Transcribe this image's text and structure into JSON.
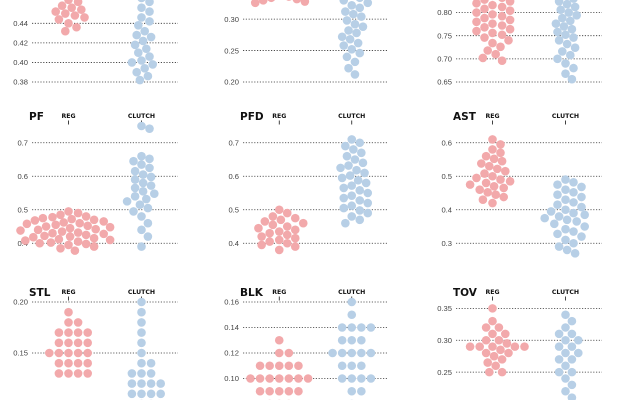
{
  "colors": {
    "reg": "#f2a9ab",
    "clutch": "#b7cfe6"
  },
  "chart_data": [
    {
      "type": "scatter",
      "title": "",
      "categories": [
        "",
        ""
      ],
      "ylim": [
        0.38,
        0.47
      ],
      "yticks": [
        0.38,
        0.4,
        0.42,
        0.44
      ],
      "series": [
        {
          "values": [
            0.464,
            0.462,
            0.458,
            0.456,
            0.454,
            0.452,
            0.45,
            0.448,
            0.446,
            0.444,
            0.44,
            0.436,
            0.432
          ]
        },
        {
          "values": [
            0.466,
            0.462,
            0.456,
            0.452,
            0.446,
            0.442,
            0.438,
            0.432,
            0.428,
            0.426,
            0.422,
            0.418,
            0.414,
            0.41,
            0.406,
            0.402,
            0.4,
            0.398,
            0.394,
            0.39,
            0.386,
            0.382
          ]
        }
      ]
    },
    {
      "type": "scatter",
      "title": "",
      "categories": [
        "",
        ""
      ],
      "ylim": [
        0.2,
        0.34
      ],
      "yticks": [
        0.2,
        0.25,
        0.3
      ],
      "series": [
        {
          "values": [
            0.338,
            0.336,
            0.334,
            0.332,
            0.33,
            0.328,
            0.326
          ]
        },
        {
          "values": [
            0.338,
            0.334,
            0.33,
            0.326,
            0.322,
            0.318,
            0.312,
            0.308,
            0.304,
            0.298,
            0.292,
            0.288,
            0.282,
            0.278,
            0.272,
            0.268,
            0.262,
            0.258,
            0.252,
            0.246,
            0.24,
            0.232,
            0.222,
            0.212
          ]
        }
      ]
    },
    {
      "type": "scatter",
      "title": "",
      "categories": [
        "",
        ""
      ],
      "ylim": [
        0.65,
        0.84
      ],
      "yticks": [
        0.65,
        0.7,
        0.75,
        0.8
      ],
      "series": [
        {
          "values": [
            0.836,
            0.832,
            0.828,
            0.824,
            0.82,
            0.816,
            0.812,
            0.808,
            0.804,
            0.8,
            0.796,
            0.792,
            0.788,
            0.784,
            0.78,
            0.776,
            0.772,
            0.768,
            0.764,
            0.76,
            0.756,
            0.752,
            0.746,
            0.74,
            0.734,
            0.726,
            0.718,
            0.71,
            0.702,
            0.696
          ]
        },
        {
          "values": [
            0.836,
            0.83,
            0.824,
            0.818,
            0.812,
            0.806,
            0.8,
            0.794,
            0.788,
            0.782,
            0.776,
            0.77,
            0.764,
            0.758,
            0.752,
            0.746,
            0.74,
            0.732,
            0.724,
            0.716,
            0.708,
            0.7,
            0.69,
            0.68,
            0.668,
            0.656
          ]
        }
      ]
    },
    {
      "type": "scatter",
      "title": "PF",
      "categories": [
        "REG",
        "CLUTCH"
      ],
      "ylim": [
        0.35,
        0.75
      ],
      "yticks": [
        0.4,
        0.5,
        0.6,
        0.7
      ],
      "series": [
        {
          "values": [
            0.495,
            0.49,
            0.485,
            0.48,
            0.478,
            0.475,
            0.472,
            0.47,
            0.468,
            0.465,
            0.462,
            0.46,
            0.458,
            0.455,
            0.452,
            0.45,
            0.448,
            0.445,
            0.442,
            0.44,
            0.438,
            0.435,
            0.432,
            0.43,
            0.428,
            0.425,
            0.422,
            0.42,
            0.418,
            0.415,
            0.412,
            0.41,
            0.408,
            0.405,
            0.402,
            0.4,
            0.398,
            0.395,
            0.39,
            0.385,
            0.378
          ]
        },
        {
          "values": [
            0.75,
            0.742,
            0.66,
            0.652,
            0.645,
            0.635,
            0.625,
            0.615,
            0.605,
            0.598,
            0.59,
            0.58,
            0.572,
            0.565,
            0.555,
            0.548,
            0.54,
            0.532,
            0.525,
            0.515,
            0.505,
            0.495,
            0.48,
            0.46,
            0.44,
            0.42,
            0.39
          ]
        }
      ]
    },
    {
      "type": "scatter",
      "title": "PFD",
      "categories": [
        "REG",
        "CLUTCH"
      ],
      "ylim": [
        0.35,
        0.75
      ],
      "yticks": [
        0.4,
        0.5,
        0.6,
        0.7
      ],
      "series": [
        {
          "values": [
            0.5,
            0.49,
            0.48,
            0.475,
            0.47,
            0.465,
            0.46,
            0.455,
            0.45,
            0.445,
            0.44,
            0.435,
            0.43,
            0.425,
            0.42,
            0.415,
            0.41,
            0.405,
            0.4,
            0.395,
            0.39,
            0.38
          ]
        },
        {
          "values": [
            0.71,
            0.7,
            0.69,
            0.68,
            0.67,
            0.66,
            0.65,
            0.64,
            0.632,
            0.625,
            0.618,
            0.61,
            0.602,
            0.595,
            0.588,
            0.58,
            0.572,
            0.565,
            0.558,
            0.55,
            0.542,
            0.535,
            0.528,
            0.52,
            0.512,
            0.505,
            0.498,
            0.49,
            0.48,
            0.47,
            0.46
          ]
        }
      ]
    },
    {
      "type": "scatter",
      "title": "AST",
      "categories": [
        "REG",
        "CLUTCH"
      ],
      "ylim": [
        0.25,
        0.65
      ],
      "yticks": [
        0.3,
        0.4,
        0.5,
        0.6
      ],
      "series": [
        {
          "values": [
            0.61,
            0.595,
            0.58,
            0.57,
            0.56,
            0.552,
            0.545,
            0.538,
            0.53,
            0.522,
            0.515,
            0.508,
            0.5,
            0.495,
            0.49,
            0.485,
            0.48,
            0.475,
            0.47,
            0.465,
            0.46,
            0.452,
            0.445,
            0.438,
            0.43,
            0.42
          ]
        },
        {
          "values": [
            0.49,
            0.482,
            0.475,
            0.468,
            0.46,
            0.452,
            0.445,
            0.438,
            0.43,
            0.422,
            0.415,
            0.408,
            0.4,
            0.395,
            0.39,
            0.385,
            0.38,
            0.375,
            0.37,
            0.365,
            0.358,
            0.35,
            0.342,
            0.335,
            0.328,
            0.32,
            0.31,
            0.3,
            0.29,
            0.28,
            0.27
          ]
        }
      ]
    },
    {
      "type": "scatter",
      "title": "STL",
      "categories": [
        "REG",
        "CLUTCH"
      ],
      "ylim": [
        0.1,
        0.2
      ],
      "yticks": [
        0.15,
        0.2
      ],
      "series": [
        {
          "values": [
            0.19,
            0.18,
            0.18,
            0.17,
            0.17,
            0.17,
            0.17,
            0.16,
            0.16,
            0.16,
            0.16,
            0.15,
            0.15,
            0.15,
            0.15,
            0.15,
            0.14,
            0.14,
            0.14,
            0.14,
            0.13,
            0.13,
            0.13,
            0.13
          ]
        },
        {
          "values": [
            0.2,
            0.19,
            0.18,
            0.17,
            0.16,
            0.15,
            0.14,
            0.14,
            0.13,
            0.13,
            0.13,
            0.12,
            0.12,
            0.12,
            0.12,
            0.11,
            0.11,
            0.11,
            0.11,
            0.1,
            0.1
          ]
        }
      ]
    },
    {
      "type": "scatter",
      "title": "BLK",
      "categories": [
        "REG",
        "CLUTCH"
      ],
      "ylim": [
        0.08,
        0.16
      ],
      "yticks": [
        0.08,
        0.1,
        0.12,
        0.14,
        0.16
      ],
      "series": [
        {
          "values": [
            0.13,
            0.12,
            0.12,
            0.11,
            0.11,
            0.11,
            0.11,
            0.11,
            0.1,
            0.1,
            0.1,
            0.1,
            0.1,
            0.1,
            0.1,
            0.09,
            0.09,
            0.09,
            0.09,
            0.09,
            0.08,
            0.08,
            0.08
          ]
        },
        {
          "values": [
            0.16,
            0.15,
            0.14,
            0.14,
            0.14,
            0.14,
            0.13,
            0.13,
            0.13,
            0.12,
            0.12,
            0.12,
            0.12,
            0.12,
            0.11,
            0.11,
            0.11,
            0.1,
            0.1,
            0.1,
            0.1,
            0.09,
            0.09,
            0.08
          ]
        }
      ]
    },
    {
      "type": "scatter",
      "title": "TOV",
      "categories": [
        "REG",
        "CLUTCH"
      ],
      "ylim": [
        0.2,
        0.36
      ],
      "yticks": [
        0.25,
        0.3,
        0.35
      ],
      "series": [
        {
          "values": [
            0.35,
            0.33,
            0.32,
            0.32,
            0.31,
            0.31,
            0.3,
            0.3,
            0.295,
            0.29,
            0.29,
            0.29,
            0.29,
            0.29,
            0.285,
            0.28,
            0.28,
            0.275,
            0.27,
            0.265,
            0.26,
            0.25,
            0.25
          ]
        },
        {
          "values": [
            0.34,
            0.33,
            0.32,
            0.31,
            0.31,
            0.3,
            0.3,
            0.29,
            0.29,
            0.28,
            0.28,
            0.27,
            0.27,
            0.26,
            0.25,
            0.25,
            0.24,
            0.23,
            0.22,
            0.21
          ]
        }
      ]
    }
  ]
}
